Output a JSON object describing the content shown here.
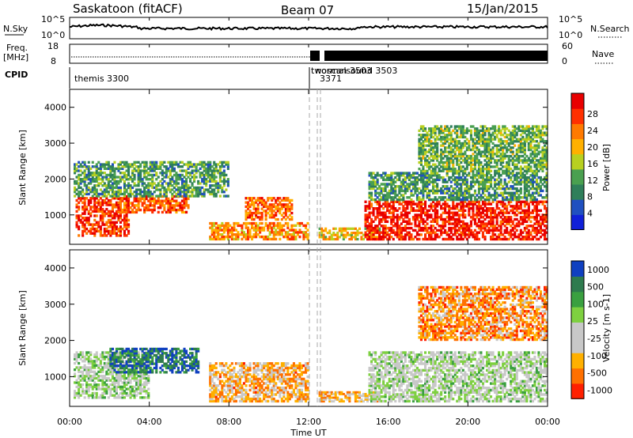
{
  "header": {
    "station": "Saskatoon (fitACF)",
    "beam": "Beam 07",
    "date": "15/Jan/2015"
  },
  "param_panels": {
    "nsky_label": "N.Sky",
    "nsky_ticks": [
      "10^5",
      "10^0"
    ],
    "nsearch_label": "N.Search",
    "nsearch_ticks": [
      "10^5",
      "10^0"
    ],
    "freq_label_1": "Freq.",
    "freq_label_2": "[MHz]",
    "freq_ticks": [
      "18",
      "8"
    ],
    "nave_label": "Nave",
    "nave_ticks": [
      "60",
      "0"
    ],
    "cpid_label": "CPID",
    "cpid_entries": [
      {
        "text": "themis 3300",
        "time_h": 0.1
      },
      {
        "text": "twoscan 3503",
        "time_h": 12.05
      },
      {
        "text": "normalsound 3503",
        "time_h": 12.4
      },
      {
        "text": "3371",
        "time_h": 12.5
      }
    ]
  },
  "chart_data": [
    {
      "type": "heatmap",
      "name": "power",
      "ylabel": "Slant Range [km]",
      "yticks": [
        "1000",
        "2000",
        "3000",
        "4000"
      ],
      "ylim": [
        180,
        4500
      ],
      "xlim": [
        0,
        24
      ],
      "colorbar_label": "Power [dB]",
      "colorbar_ticks": [
        "4",
        "8",
        "12",
        "16",
        "20",
        "24",
        "28"
      ],
      "colors": [
        "#1020d8",
        "#2050c0",
        "#2f7f5a",
        "#4aa050",
        "#b8d020",
        "#ffb000",
        "#ff7a00",
        "#ff3000",
        "#e80000"
      ],
      "regions": [
        {
          "t0": 0.3,
          "t1": 3.0,
          "r0": 400,
          "r1": 1500,
          "level": 0.85
        },
        {
          "t0": 2.4,
          "t1": 6.0,
          "r0": 1050,
          "r1": 1550,
          "level": 0.8
        },
        {
          "t0": 0.2,
          "t1": 8.0,
          "r0": 1500,
          "r1": 2500,
          "level": 0.35
        },
        {
          "t0": 8.8,
          "t1": 11.2,
          "r0": 850,
          "r1": 1500,
          "level": 0.75
        },
        {
          "t0": 7.0,
          "t1": 12.0,
          "r0": 300,
          "r1": 800,
          "level": 0.7
        },
        {
          "t0": 12.5,
          "t1": 15.6,
          "r0": 300,
          "r1": 650,
          "level": 0.6
        },
        {
          "t0": 14.8,
          "t1": 24.0,
          "r0": 300,
          "r1": 1400,
          "level": 0.9
        },
        {
          "t0": 15.0,
          "t1": 24.0,
          "r0": 1400,
          "r1": 2200,
          "level": 0.35
        },
        {
          "t0": 17.5,
          "t1": 24.0,
          "r0": 2200,
          "r1": 3500,
          "level": 0.4
        }
      ]
    },
    {
      "type": "heatmap",
      "name": "velocity",
      "ylabel": "Slant Range [km]",
      "xlabel": "Time UT",
      "xticks": [
        "00:00",
        "04:00",
        "08:00",
        "12:00",
        "16:00",
        "20:00",
        "00:00"
      ],
      "yticks": [
        "1000",
        "2000",
        "3000",
        "4000"
      ],
      "ylim": [
        180,
        4500
      ],
      "xlim": [
        0,
        24
      ],
      "colorbar_label": "Velocity [m s-1]",
      "colorbar_ticks": [
        "1000",
        "500",
        "100",
        "25",
        "-25",
        "-100",
        "-500",
        "-1000"
      ],
      "colors": [
        "#1040c0",
        "#2e7b4e",
        "#3aa040",
        "#7ed040",
        "#c8c8c8",
        "#c8c8c8",
        "#ffb000",
        "#ff7000",
        "#ff2000"
      ],
      "regions": [
        {
          "t0": 0.2,
          "t1": 4.0,
          "r0": 400,
          "r1": 1700,
          "level": 0.45
        },
        {
          "t0": 2.0,
          "t1": 6.5,
          "r0": 1100,
          "r1": 1800,
          "level": 0.15
        },
        {
          "t0": 7.0,
          "t1": 12.0,
          "r0": 300,
          "r1": 1400,
          "level": 0.72
        },
        {
          "t0": 12.5,
          "t1": 15.5,
          "r0": 300,
          "r1": 600,
          "level": 0.7
        },
        {
          "t0": 15.0,
          "t1": 24.0,
          "r0": 300,
          "r1": 1700,
          "level": 0.47
        },
        {
          "t0": 17.5,
          "t1": 24.0,
          "r0": 2000,
          "r1": 3500,
          "level": 0.78
        }
      ]
    }
  ]
}
